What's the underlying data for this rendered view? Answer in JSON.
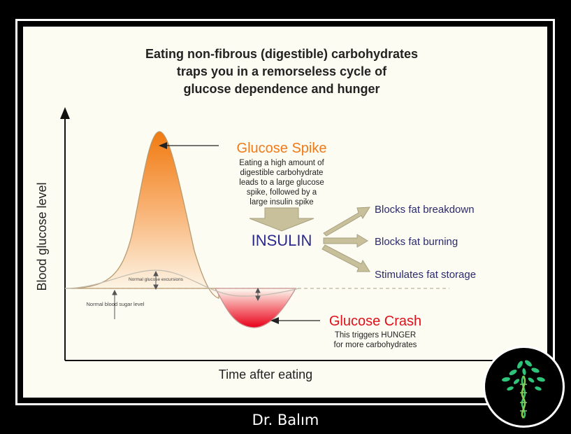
{
  "title_lines": [
    "Eating non-fibrous (digestible) carbohydrates",
    "traps you in a remorseless cycle of",
    "glucose dependence and hunger"
  ],
  "axes": {
    "y_label": "Blood glucose level",
    "x_label": "Time after eating"
  },
  "spike": {
    "title": "Glucose Spike",
    "description_lines": [
      "Eating a high amount of",
      "digestible carbohydrate",
      "leads to a large glucose",
      "spike, followed by a",
      "large insulin spike"
    ]
  },
  "insulin": {
    "label": "INSULIN",
    "effects": [
      "Blocks fat breakdown",
      "Blocks fat burning",
      "Stimulates fat storage"
    ]
  },
  "crash": {
    "title": "Glucose Crash",
    "description_lines": [
      "This triggers HUNGER",
      "for more carbohydrates"
    ]
  },
  "normal": {
    "excursions_label": "Normal glucose excursions",
    "level_label": "Normal blood sugar level"
  },
  "footer": "Dr. Balım",
  "colors": {
    "spike_title": "#f07a1a",
    "crash_title": "#e0101a",
    "insulin": "#2a2a8c",
    "arrow_fill": "#c8c09a",
    "panel_bg": "#fdfcf2"
  }
}
